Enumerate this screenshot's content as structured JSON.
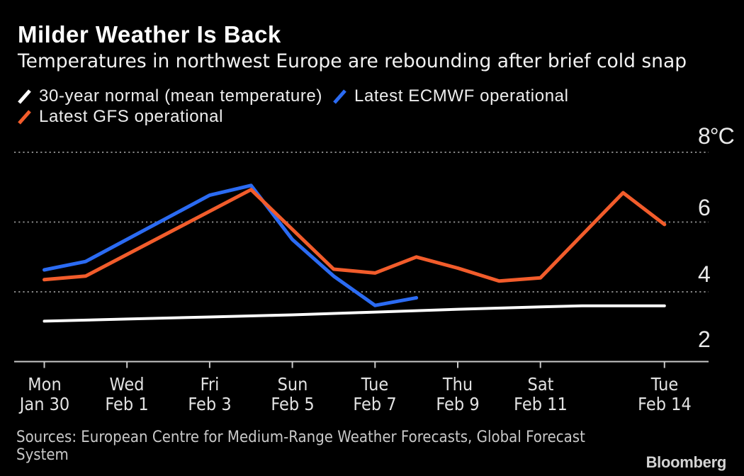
{
  "header": {
    "title": "Milder Weather Is Back",
    "subtitle": "Temperatures in northwest Europe are rebounding after brief cold snap"
  },
  "legend": [
    {
      "label": "30-year normal (mean temperature)",
      "color": "#ffffff"
    },
    {
      "label": "Latest ECMWF operational",
      "color": "#2b6bf3"
    },
    {
      "label": "Latest GFS operational",
      "color": "#f25c2b"
    }
  ],
  "footer": {
    "source_lines": [
      "Sources: European Centre for Medium-Range Weather Forecasts, Global Forecast",
      "System"
    ],
    "logo": "Bloomberg"
  },
  "chart_data": {
    "type": "line",
    "title": "Milder Weather Is Back",
    "subtitle": "Temperatures in northwest Europe are rebounding after brief cold snap",
    "x_unit": "days since Jan 30",
    "ylim": [
      2,
      8
    ],
    "y_gridlines": [
      8,
      6,
      4
    ],
    "grid_style": "dotted",
    "legend_position": "top",
    "y_ticks": [
      {
        "label": "8°C",
        "value": 8
      },
      {
        "label": "6",
        "value": 6
      },
      {
        "label": "4",
        "value": 4
      },
      {
        "label": "2",
        "value": 2
      }
    ],
    "x_ticks": [
      {
        "day": "Mon",
        "date": "Jan 30",
        "x": 0
      },
      {
        "day": "Wed",
        "date": "Feb 1",
        "x": 2
      },
      {
        "day": "Fri",
        "date": "Feb 3",
        "x": 4
      },
      {
        "day": "Sun",
        "date": "Feb 5",
        "x": 6
      },
      {
        "day": "Tue",
        "date": "Feb 7",
        "x": 8
      },
      {
        "day": "Thu",
        "date": "Feb 9",
        "x": 10
      },
      {
        "day": "Sat",
        "date": "Feb 11",
        "x": 12
      },
      {
        "day": "Tue",
        "date": "Feb 14",
        "x": 15
      }
    ],
    "series": [
      {
        "id": "30-year-normal",
        "name": "30-year normal (mean temperature)",
        "color": "#ffffff",
        "width": 4,
        "points": [
          [
            0,
            3.16
          ],
          [
            2,
            3.22
          ],
          [
            4,
            3.28
          ],
          [
            6,
            3.34
          ],
          [
            8,
            3.42
          ],
          [
            10,
            3.5
          ],
          [
            12,
            3.57
          ],
          [
            13,
            3.6
          ],
          [
            15,
            3.6
          ]
        ]
      },
      {
        "id": "ecmwf",
        "name": "Latest ECMWF operational",
        "color": "#2b6bf3",
        "width": 5,
        "points": [
          [
            0,
            4.63
          ],
          [
            1,
            4.87
          ],
          [
            4,
            6.77
          ],
          [
            5,
            7.05
          ],
          [
            6,
            5.5
          ],
          [
            7,
            4.45
          ],
          [
            8,
            3.61
          ],
          [
            9,
            3.83
          ]
        ]
      },
      {
        "id": "gfs",
        "name": "Latest GFS operational",
        "color": "#f25c2b",
        "width": 5,
        "points": [
          [
            0,
            4.35
          ],
          [
            1,
            4.45
          ],
          [
            5,
            6.93
          ],
          [
            7,
            4.65
          ],
          [
            8,
            4.54
          ],
          [
            9,
            5.0
          ],
          [
            10,
            4.68
          ],
          [
            11,
            4.31
          ],
          [
            12,
            4.4
          ],
          [
            14,
            6.84
          ],
          [
            15,
            5.93
          ]
        ]
      }
    ]
  }
}
